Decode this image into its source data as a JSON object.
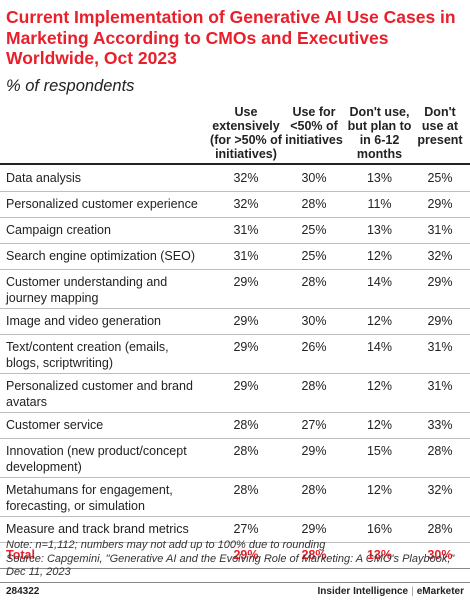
{
  "title": "Current Implementation of Generative AI Use Cases in Marketing According to CMOs and Executives Worldwide, Oct 2023",
  "subtitle": "% of respondents",
  "chart_data": {
    "type": "table",
    "columns": [
      "Use extensively (for >50% of initiatives)",
      "Use for <50% of initiatives",
      "Don't use, but plan to in 6-12 months",
      "Don't use at present"
    ],
    "rows": [
      {
        "label": "Data analysis",
        "values": [
          "32%",
          "30%",
          "13%",
          "25%"
        ]
      },
      {
        "label": "Personalized customer experience",
        "values": [
          "32%",
          "28%",
          "11%",
          "29%"
        ]
      },
      {
        "label": "Campaign creation",
        "values": [
          "31%",
          "25%",
          "13%",
          "31%"
        ]
      },
      {
        "label": "Search engine optimization (SEO)",
        "values": [
          "31%",
          "25%",
          "12%",
          "32%"
        ]
      },
      {
        "label": "Customer understanding and journey mapping",
        "values": [
          "29%",
          "28%",
          "14%",
          "29%"
        ]
      },
      {
        "label": "Image and video generation",
        "values": [
          "29%",
          "30%",
          "12%",
          "29%"
        ]
      },
      {
        "label": "Text/content creation (emails, blogs, scriptwriting)",
        "values": [
          "29%",
          "26%",
          "14%",
          "31%"
        ]
      },
      {
        "label": "Personalized customer and brand avatars",
        "values": [
          "29%",
          "28%",
          "12%",
          "31%"
        ]
      },
      {
        "label": "Customer service",
        "values": [
          "28%",
          "27%",
          "12%",
          "33%"
        ]
      },
      {
        "label": "Innovation (new product/concept development)",
        "values": [
          "28%",
          "29%",
          "15%",
          "28%"
        ]
      },
      {
        "label": "Metahumans for engagement, forecasting, or simulation",
        "values": [
          "28%",
          "28%",
          "12%",
          "32%"
        ]
      },
      {
        "label": "Measure and track brand metrics",
        "values": [
          "27%",
          "29%",
          "16%",
          "28%"
        ]
      }
    ],
    "total": {
      "label": "Total",
      "values": [
        "29%",
        "28%",
        "13%",
        "30%"
      ]
    }
  },
  "note": "Note: n=1,112; numbers may not add up to 100% due to rounding",
  "source": "Source: Capgemini, \"Generative AI and the Evolving Role of Marketing: A CMO's Playbook,\" Dec 11, 2023",
  "chart_id": "284322",
  "brand": {
    "left": "Insider Intelligence",
    "separator": "|",
    "right": "eMarketer"
  },
  "colors": {
    "accent": "#e8202c",
    "text": "#222222",
    "rule": "#bdbdbd"
  }
}
